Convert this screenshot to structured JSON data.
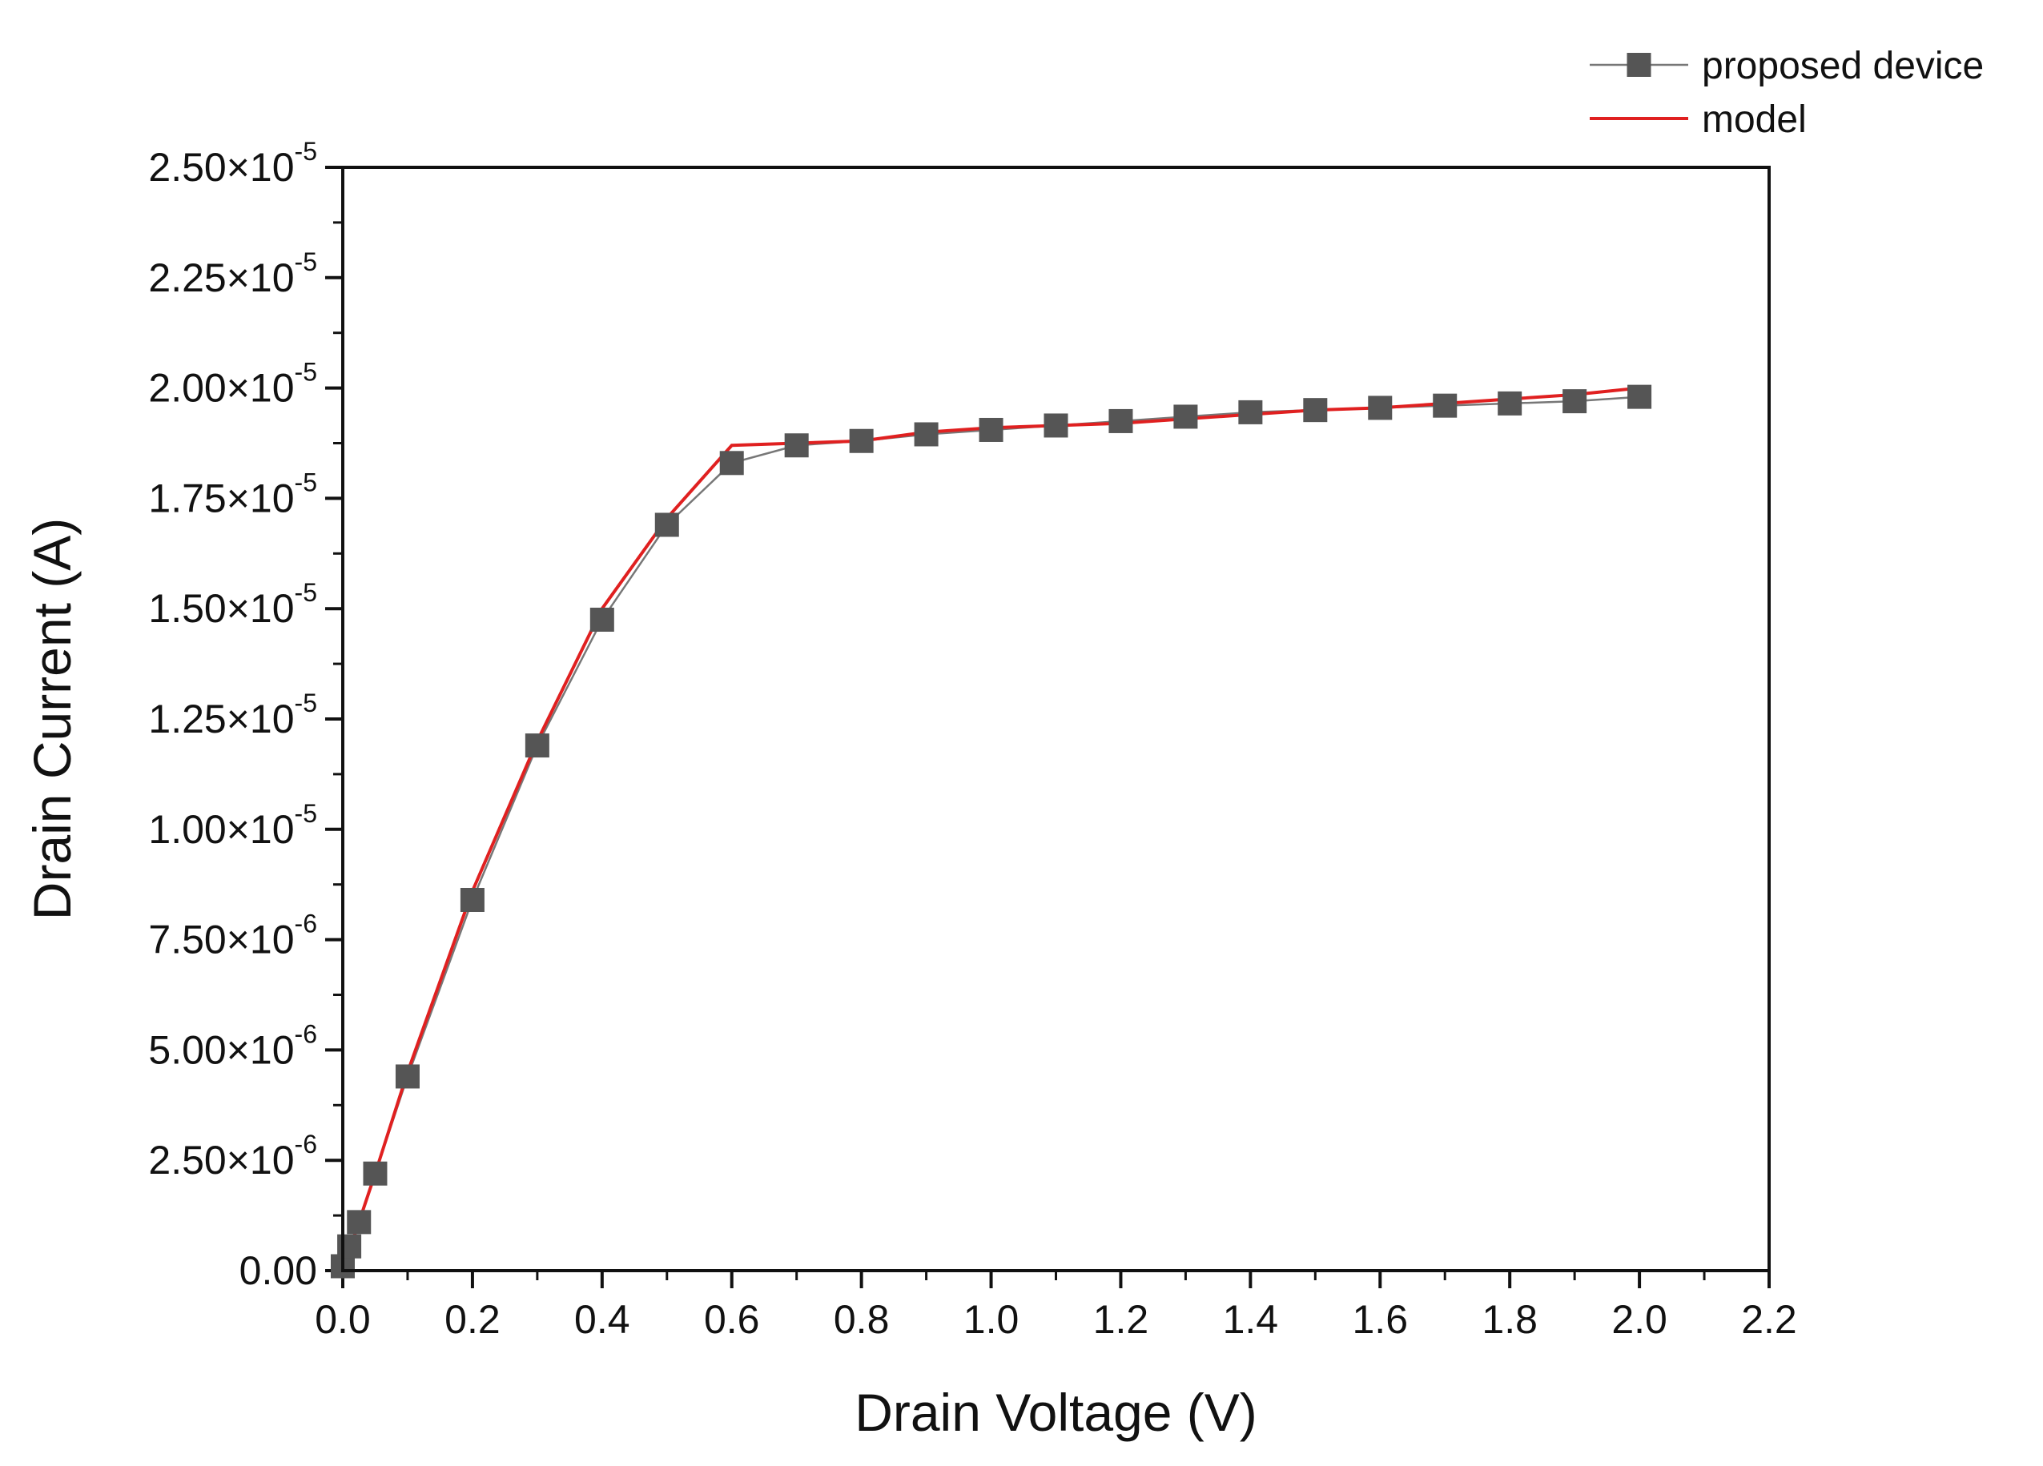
{
  "chart_data": {
    "type": "line",
    "title": "",
    "xlabel": "Drain Voltage (V)",
    "ylabel": "Drain Current (A)",
    "xlim": [
      0,
      2.2
    ],
    "ylim": [
      0,
      2.5e-05
    ],
    "grid": false,
    "legend_position": "top-right, outside plot",
    "x_ticks": [
      {
        "value": 0.0,
        "label": "0.0"
      },
      {
        "value": 0.2,
        "label": "0.2"
      },
      {
        "value": 0.4,
        "label": "0.4"
      },
      {
        "value": 0.6,
        "label": "0.6"
      },
      {
        "value": 0.8,
        "label": "0.8"
      },
      {
        "value": 1.0,
        "label": "1.0"
      },
      {
        "value": 1.2,
        "label": "1.2"
      },
      {
        "value": 1.4,
        "label": "1.4"
      },
      {
        "value": 1.6,
        "label": "1.6"
      },
      {
        "value": 1.8,
        "label": "1.8"
      },
      {
        "value": 2.0,
        "label": "2.0"
      },
      {
        "value": 2.2,
        "label": "2.2"
      }
    ],
    "y_ticks": [
      {
        "value": 0,
        "mantissa": "0.00",
        "exponent": ""
      },
      {
        "value": 2.5e-06,
        "mantissa": "2.50×10",
        "exponent": "-6"
      },
      {
        "value": 5e-06,
        "mantissa": "5.00×10",
        "exponent": "-6"
      },
      {
        "value": 7.5e-06,
        "mantissa": "7.50×10",
        "exponent": "-6"
      },
      {
        "value": 1e-05,
        "mantissa": "1.00×10",
        "exponent": "-5"
      },
      {
        "value": 1.25e-05,
        "mantissa": "1.25×10",
        "exponent": "-5"
      },
      {
        "value": 1.5e-05,
        "mantissa": "1.50×10",
        "exponent": "-5"
      },
      {
        "value": 1.75e-05,
        "mantissa": "1.75×10",
        "exponent": "-5"
      },
      {
        "value": 2e-05,
        "mantissa": "2.00×10",
        "exponent": "-5"
      },
      {
        "value": 2.25e-05,
        "mantissa": "2.25×10",
        "exponent": "-5"
      },
      {
        "value": 2.5e-05,
        "mantissa": "2.50×10",
        "exponent": "-5"
      }
    ],
    "series": [
      {
        "name": "proposed device",
        "style": "line+square-markers",
        "color": "#555555",
        "line_color": "#777777",
        "x": [
          0.0,
          0.01,
          0.025,
          0.05,
          0.1,
          0.2,
          0.3,
          0.4,
          0.5,
          0.6,
          0.7,
          0.8,
          0.9,
          1.0,
          1.1,
          1.2,
          1.3,
          1.4,
          1.5,
          1.6,
          1.7,
          1.8,
          1.9,
          2.0
        ],
        "y": [
          1e-07,
          5.5e-07,
          1.1e-06,
          2.2e-06,
          4.4e-06,
          8.4e-06,
          1.19e-05,
          1.475e-05,
          1.69e-05,
          1.83e-05,
          1.87e-05,
          1.88e-05,
          1.895e-05,
          1.905e-05,
          1.915e-05,
          1.925e-05,
          1.935e-05,
          1.945e-05,
          1.95e-05,
          1.955e-05,
          1.96e-05,
          1.965e-05,
          1.97e-05,
          1.98e-05
        ]
      },
      {
        "name": "model",
        "style": "line",
        "color": "#e02020",
        "x": [
          0.0,
          0.05,
          0.1,
          0.2,
          0.3,
          0.4,
          0.5,
          0.6,
          0.7,
          0.8,
          0.9,
          1.0,
          1.1,
          1.2,
          1.3,
          1.4,
          1.5,
          1.6,
          1.7,
          1.8,
          1.9,
          2.0
        ],
        "y": [
          0.0,
          2.2e-06,
          4.5e-06,
          8.6e-06,
          1.2e-05,
          1.5e-05,
          1.705e-05,
          1.87e-05,
          1.875e-05,
          1.88e-05,
          1.9e-05,
          1.91e-05,
          1.915e-05,
          1.92e-05,
          1.93e-05,
          1.94e-05,
          1.95e-05,
          1.955e-05,
          1.965e-05,
          1.975e-05,
          1.985e-05,
          2e-05
        ]
      }
    ]
  }
}
